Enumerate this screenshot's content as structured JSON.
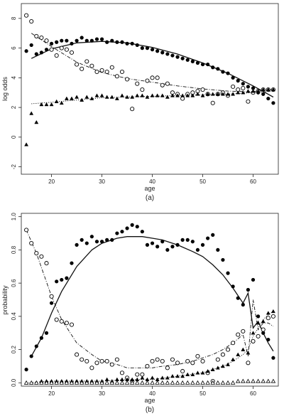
{
  "chart_data": [
    {
      "type": "scatter",
      "panel_label": "(a)",
      "xlabel": "age",
      "ylabel": "log odds",
      "xlim": [
        14,
        65
      ],
      "ylim": [
        -2.5,
        9
      ],
      "xticks": [
        20,
        30,
        40,
        50,
        60
      ],
      "yticks": [
        -2,
        0,
        2,
        4,
        6,
        8
      ],
      "series": [
        {
          "marker": "filled-circle",
          "x": [
            15,
            16,
            17,
            18,
            19,
            20,
            21,
            22,
            23,
            24,
            25,
            26,
            27,
            28,
            29,
            30,
            31,
            32,
            33,
            34,
            35,
            36,
            37,
            38,
            39,
            40,
            41,
            42,
            43,
            44,
            45,
            46,
            47,
            48,
            49,
            50,
            51,
            52,
            53,
            54,
            55,
            56,
            57,
            58,
            59,
            60,
            61,
            62,
            63,
            64
          ],
          "y": [
            5.8,
            6.2,
            5.6,
            5.7,
            5.9,
            6.3,
            6.4,
            6.5,
            6.5,
            6.3,
            6.5,
            6.7,
            6.5,
            6.5,
            6.6,
            6.6,
            6.4,
            6.5,
            6.4,
            6.4,
            6.3,
            6.3,
            6.2,
            6.0,
            6.0,
            5.9,
            5.8,
            5.7,
            5.6,
            5.5,
            5.4,
            5.3,
            5.2,
            5.1,
            5.0,
            4.9,
            4.9,
            4.7,
            4.6,
            4.4,
            4.3,
            4.0,
            3.8,
            3.6,
            3.4,
            3.3,
            3.0,
            2.9,
            2.6,
            2.3
          ]
        },
        {
          "marker": "open-circle",
          "x": [
            15,
            16,
            17,
            18,
            19,
            20,
            21,
            22,
            23,
            24,
            25,
            26,
            27,
            28,
            29,
            30,
            31,
            32,
            33,
            34,
            35,
            36,
            37,
            38,
            39,
            40,
            41,
            42,
            43,
            44,
            45,
            46,
            47,
            48,
            49,
            50,
            51,
            52,
            53,
            54,
            55,
            56,
            57,
            58,
            59,
            60,
            61,
            62,
            63,
            64
          ],
          "y": [
            8.2,
            7.8,
            6.8,
            6.7,
            6.5,
            5.9,
            5.5,
            6.0,
            5.9,
            5.7,
            4.9,
            4.6,
            5.1,
            4.8,
            4.4,
            4.5,
            4.4,
            4.7,
            4.1,
            4.4,
            3.9,
            1.9,
            3.6,
            3.2,
            3.8,
            4.0,
            4.0,
            3.5,
            3.6,
            3.0,
            2.9,
            2.6,
            2.9,
            3.0,
            3.1,
            3.2,
            2.9,
            2.3,
            2.9,
            3.0,
            2.8,
            3.4,
            3.2,
            3.3,
            2.4,
            3.0,
            3.1,
            3.2,
            3.2,
            3.2
          ]
        },
        {
          "marker": "filled-triangle",
          "x": [
            15,
            16,
            17,
            18,
            19,
            20,
            21,
            22,
            23,
            24,
            25,
            26,
            27,
            28,
            29,
            30,
            31,
            32,
            33,
            34,
            35,
            36,
            37,
            38,
            39,
            40,
            41,
            42,
            43,
            44,
            45,
            46,
            47,
            48,
            49,
            50,
            51,
            52,
            53,
            54,
            55,
            56,
            57,
            58,
            59,
            60,
            61,
            62,
            63,
            64
          ],
          "y": [
            -0.5,
            1.6,
            1.0,
            2.2,
            2.2,
            2.2,
            2.4,
            2.3,
            2.6,
            2.6,
            2.7,
            2.5,
            2.7,
            2.6,
            2.8,
            2.8,
            2.7,
            2.7,
            2.6,
            2.8,
            2.7,
            2.7,
            2.8,
            2.8,
            2.7,
            2.8,
            2.8,
            2.8,
            2.7,
            2.8,
            2.8,
            2.8,
            2.8,
            2.8,
            2.9,
            2.8,
            2.9,
            2.9,
            2.9,
            2.9,
            2.9,
            2.9,
            3.0,
            3.0,
            3.1,
            3.1,
            3.1,
            3.2,
            3.2,
            3.2
          ]
        }
      ],
      "fits": [
        {
          "style": "solid",
          "x": [
            16,
            20,
            25,
            30,
            35,
            40,
            45,
            50,
            55,
            60,
            64
          ],
          "y": [
            5.3,
            5.95,
            6.35,
            6.45,
            6.35,
            6.05,
            5.6,
            5.0,
            4.3,
            3.45,
            2.7
          ]
        },
        {
          "style": "dash-dot",
          "x": [
            16,
            20,
            25,
            30,
            35,
            40,
            45,
            50,
            55,
            60,
            64
          ],
          "y": [
            7.0,
            6.1,
            5.05,
            4.35,
            3.95,
            3.7,
            3.45,
            3.25,
            3.1,
            3.05,
            3.2
          ]
        },
        {
          "style": "dotted",
          "x": [
            16,
            20,
            25,
            30,
            35,
            40,
            45,
            50,
            55,
            60,
            64
          ],
          "y": [
            2.25,
            2.35,
            2.5,
            2.65,
            2.7,
            2.75,
            2.8,
            2.85,
            2.9,
            3.0,
            3.1
          ]
        }
      ]
    },
    {
      "type": "scatter",
      "panel_label": "(b)",
      "xlabel": "age",
      "ylabel": "probability",
      "xlim": [
        14,
        65
      ],
      "ylim": [
        -0.02,
        1.02
      ],
      "xticks": [
        20,
        30,
        40,
        50,
        60
      ],
      "yticks": [
        0.0,
        0.2,
        0.4,
        0.6,
        0.8,
        1.0
      ],
      "series": [
        {
          "marker": "filled-circle",
          "x": [
            15,
            16,
            17,
            18,
            19,
            20,
            21,
            22,
            23,
            24,
            25,
            26,
            27,
            28,
            29,
            30,
            31,
            32,
            33,
            34,
            35,
            36,
            37,
            38,
            39,
            40,
            41,
            42,
            43,
            44,
            45,
            46,
            47,
            48,
            49,
            50,
            51,
            52,
            53,
            54,
            55,
            56,
            57,
            58,
            59,
            60,
            61,
            62,
            63,
            64
          ],
          "y": [
            0.08,
            0.16,
            0.22,
            0.27,
            0.3,
            0.48,
            0.61,
            0.62,
            0.63,
            0.72,
            0.83,
            0.86,
            0.84,
            0.88,
            0.85,
            0.85,
            0.86,
            0.86,
            0.9,
            0.91,
            0.93,
            0.95,
            0.94,
            0.91,
            0.83,
            0.84,
            0.82,
            0.85,
            0.8,
            0.82,
            0.83,
            0.86,
            0.86,
            0.85,
            0.8,
            0.83,
            0.87,
            0.89,
            0.8,
            0.74,
            0.66,
            0.58,
            0.51,
            0.47,
            0.56,
            0.62,
            0.4,
            0.3,
            0.26,
            0.15
          ]
        },
        {
          "marker": "open-circle",
          "x": [
            15,
            16,
            17,
            18,
            19,
            20,
            21,
            22,
            23,
            24,
            25,
            26,
            27,
            28,
            29,
            30,
            31,
            32,
            33,
            34,
            35,
            36,
            37,
            38,
            39,
            40,
            41,
            42,
            43,
            44,
            45,
            46,
            47,
            48,
            49,
            50,
            51,
            52,
            53,
            54,
            55,
            56,
            57,
            58,
            59,
            60,
            61,
            62,
            63,
            64
          ],
          "y": [
            0.92,
            0.84,
            0.78,
            0.76,
            0.72,
            0.52,
            0.38,
            0.37,
            0.36,
            0.35,
            0.17,
            0.14,
            0.13,
            0.09,
            0.12,
            0.13,
            0.13,
            0.11,
            0.14,
            0.06,
            0.03,
            0.01,
            0.05,
            0.05,
            0.1,
            0.13,
            0.14,
            0.13,
            0.09,
            0.14,
            0.12,
            0.07,
            0.13,
            0.12,
            0.16,
            0.13,
            0.06,
            0.01,
            0.14,
            0.17,
            0.2,
            0.24,
            0.29,
            0.31,
            0.12,
            0.25,
            0.28,
            0.32,
            0.39,
            0.4
          ]
        },
        {
          "marker": "filled-triangle",
          "x": [
            15,
            16,
            17,
            18,
            19,
            20,
            21,
            22,
            23,
            24,
            25,
            26,
            27,
            28,
            29,
            30,
            31,
            32,
            33,
            34,
            35,
            36,
            37,
            38,
            39,
            40,
            41,
            42,
            43,
            44,
            45,
            46,
            47,
            48,
            49,
            50,
            51,
            52,
            53,
            54,
            55,
            56,
            57,
            58,
            59,
            60,
            61,
            62,
            63,
            64
          ],
          "y": [
            0.0,
            0.0,
            0.0,
            0.01,
            0.01,
            0.01,
            0.01,
            0.01,
            0.01,
            0.01,
            0.01,
            0.01,
            0.01,
            0.01,
            0.01,
            0.01,
            0.02,
            0.01,
            0.02,
            0.02,
            0.02,
            0.02,
            0.02,
            0.03,
            0.02,
            0.03,
            0.02,
            0.03,
            0.03,
            0.04,
            0.04,
            0.04,
            0.05,
            0.05,
            0.06,
            0.06,
            0.07,
            0.08,
            0.09,
            0.1,
            0.11,
            0.14,
            0.17,
            0.2,
            0.18,
            0.3,
            0.36,
            0.37,
            0.42,
            0.43
          ]
        },
        {
          "marker": "open-triangle",
          "x": [
            15,
            16,
            17,
            18,
            19,
            20,
            21,
            22,
            23,
            24,
            25,
            26,
            27,
            28,
            29,
            30,
            31,
            32,
            33,
            34,
            35,
            36,
            37,
            38,
            39,
            40,
            41,
            42,
            43,
            44,
            45,
            46,
            47,
            48,
            49,
            50,
            51,
            52,
            53,
            54,
            55,
            56,
            57,
            58,
            59,
            60,
            61,
            62,
            63,
            64
          ],
          "y": [
            0.0,
            0.0,
            0.0,
            0.0,
            0.0,
            0.0,
            0.0,
            0.0,
            0.0,
            0.0,
            0.0,
            0.0,
            0.0,
            0.0,
            0.0,
            0.0,
            0.0,
            0.0,
            0.0,
            0.0,
            0.0,
            0.0,
            0.0,
            0.0,
            0.0,
            0.0,
            0.0,
            0.0,
            0.0,
            0.0,
            0.0,
            0.0,
            0.0,
            0.0,
            0.0,
            0.0,
            0.0,
            0.0,
            0.0,
            0.0,
            0.0,
            0.0,
            0.01,
            0.01,
            0.01,
            0.01,
            0.01,
            0.01,
            0.01,
            0.01
          ]
        }
      ],
      "fits": [
        {
          "style": "solid",
          "x": [
            16,
            18,
            20,
            22,
            25,
            28,
            30,
            33,
            35,
            38,
            40,
            42,
            45,
            48,
            50,
            52,
            54,
            56,
            58,
            59,
            60,
            61,
            62,
            63,
            64
          ],
          "y": [
            0.16,
            0.27,
            0.42,
            0.55,
            0.7,
            0.8,
            0.84,
            0.87,
            0.88,
            0.88,
            0.87,
            0.86,
            0.83,
            0.79,
            0.76,
            0.71,
            0.65,
            0.57,
            0.48,
            0.54,
            0.33,
            0.37,
            0.3,
            0.24,
            0.19
          ]
        },
        {
          "style": "dash-dot",
          "x": [
            15,
            17,
            20,
            22,
            25,
            28,
            30,
            33,
            35,
            38,
            40,
            42,
            45,
            48,
            50,
            52,
            54,
            56,
            58,
            59,
            60,
            61,
            62,
            63,
            64
          ],
          "y": [
            0.92,
            0.78,
            0.52,
            0.38,
            0.24,
            0.17,
            0.13,
            0.11,
            0.09,
            0.09,
            0.09,
            0.1,
            0.11,
            0.13,
            0.15,
            0.17,
            0.2,
            0.24,
            0.29,
            0.16,
            0.5,
            0.32,
            0.36,
            0.36,
            0.34
          ]
        },
        {
          "style": "dotted",
          "x": [
            15,
            20,
            25,
            30,
            35,
            40,
            45,
            50,
            52,
            54,
            56,
            58,
            59,
            60,
            61,
            62,
            63,
            64
          ],
          "y": [
            0.0,
            0.01,
            0.01,
            0.01,
            0.02,
            0.02,
            0.04,
            0.06,
            0.08,
            0.1,
            0.13,
            0.17,
            0.2,
            0.28,
            0.33,
            0.38,
            0.41,
            0.43
          ]
        }
      ]
    }
  ]
}
